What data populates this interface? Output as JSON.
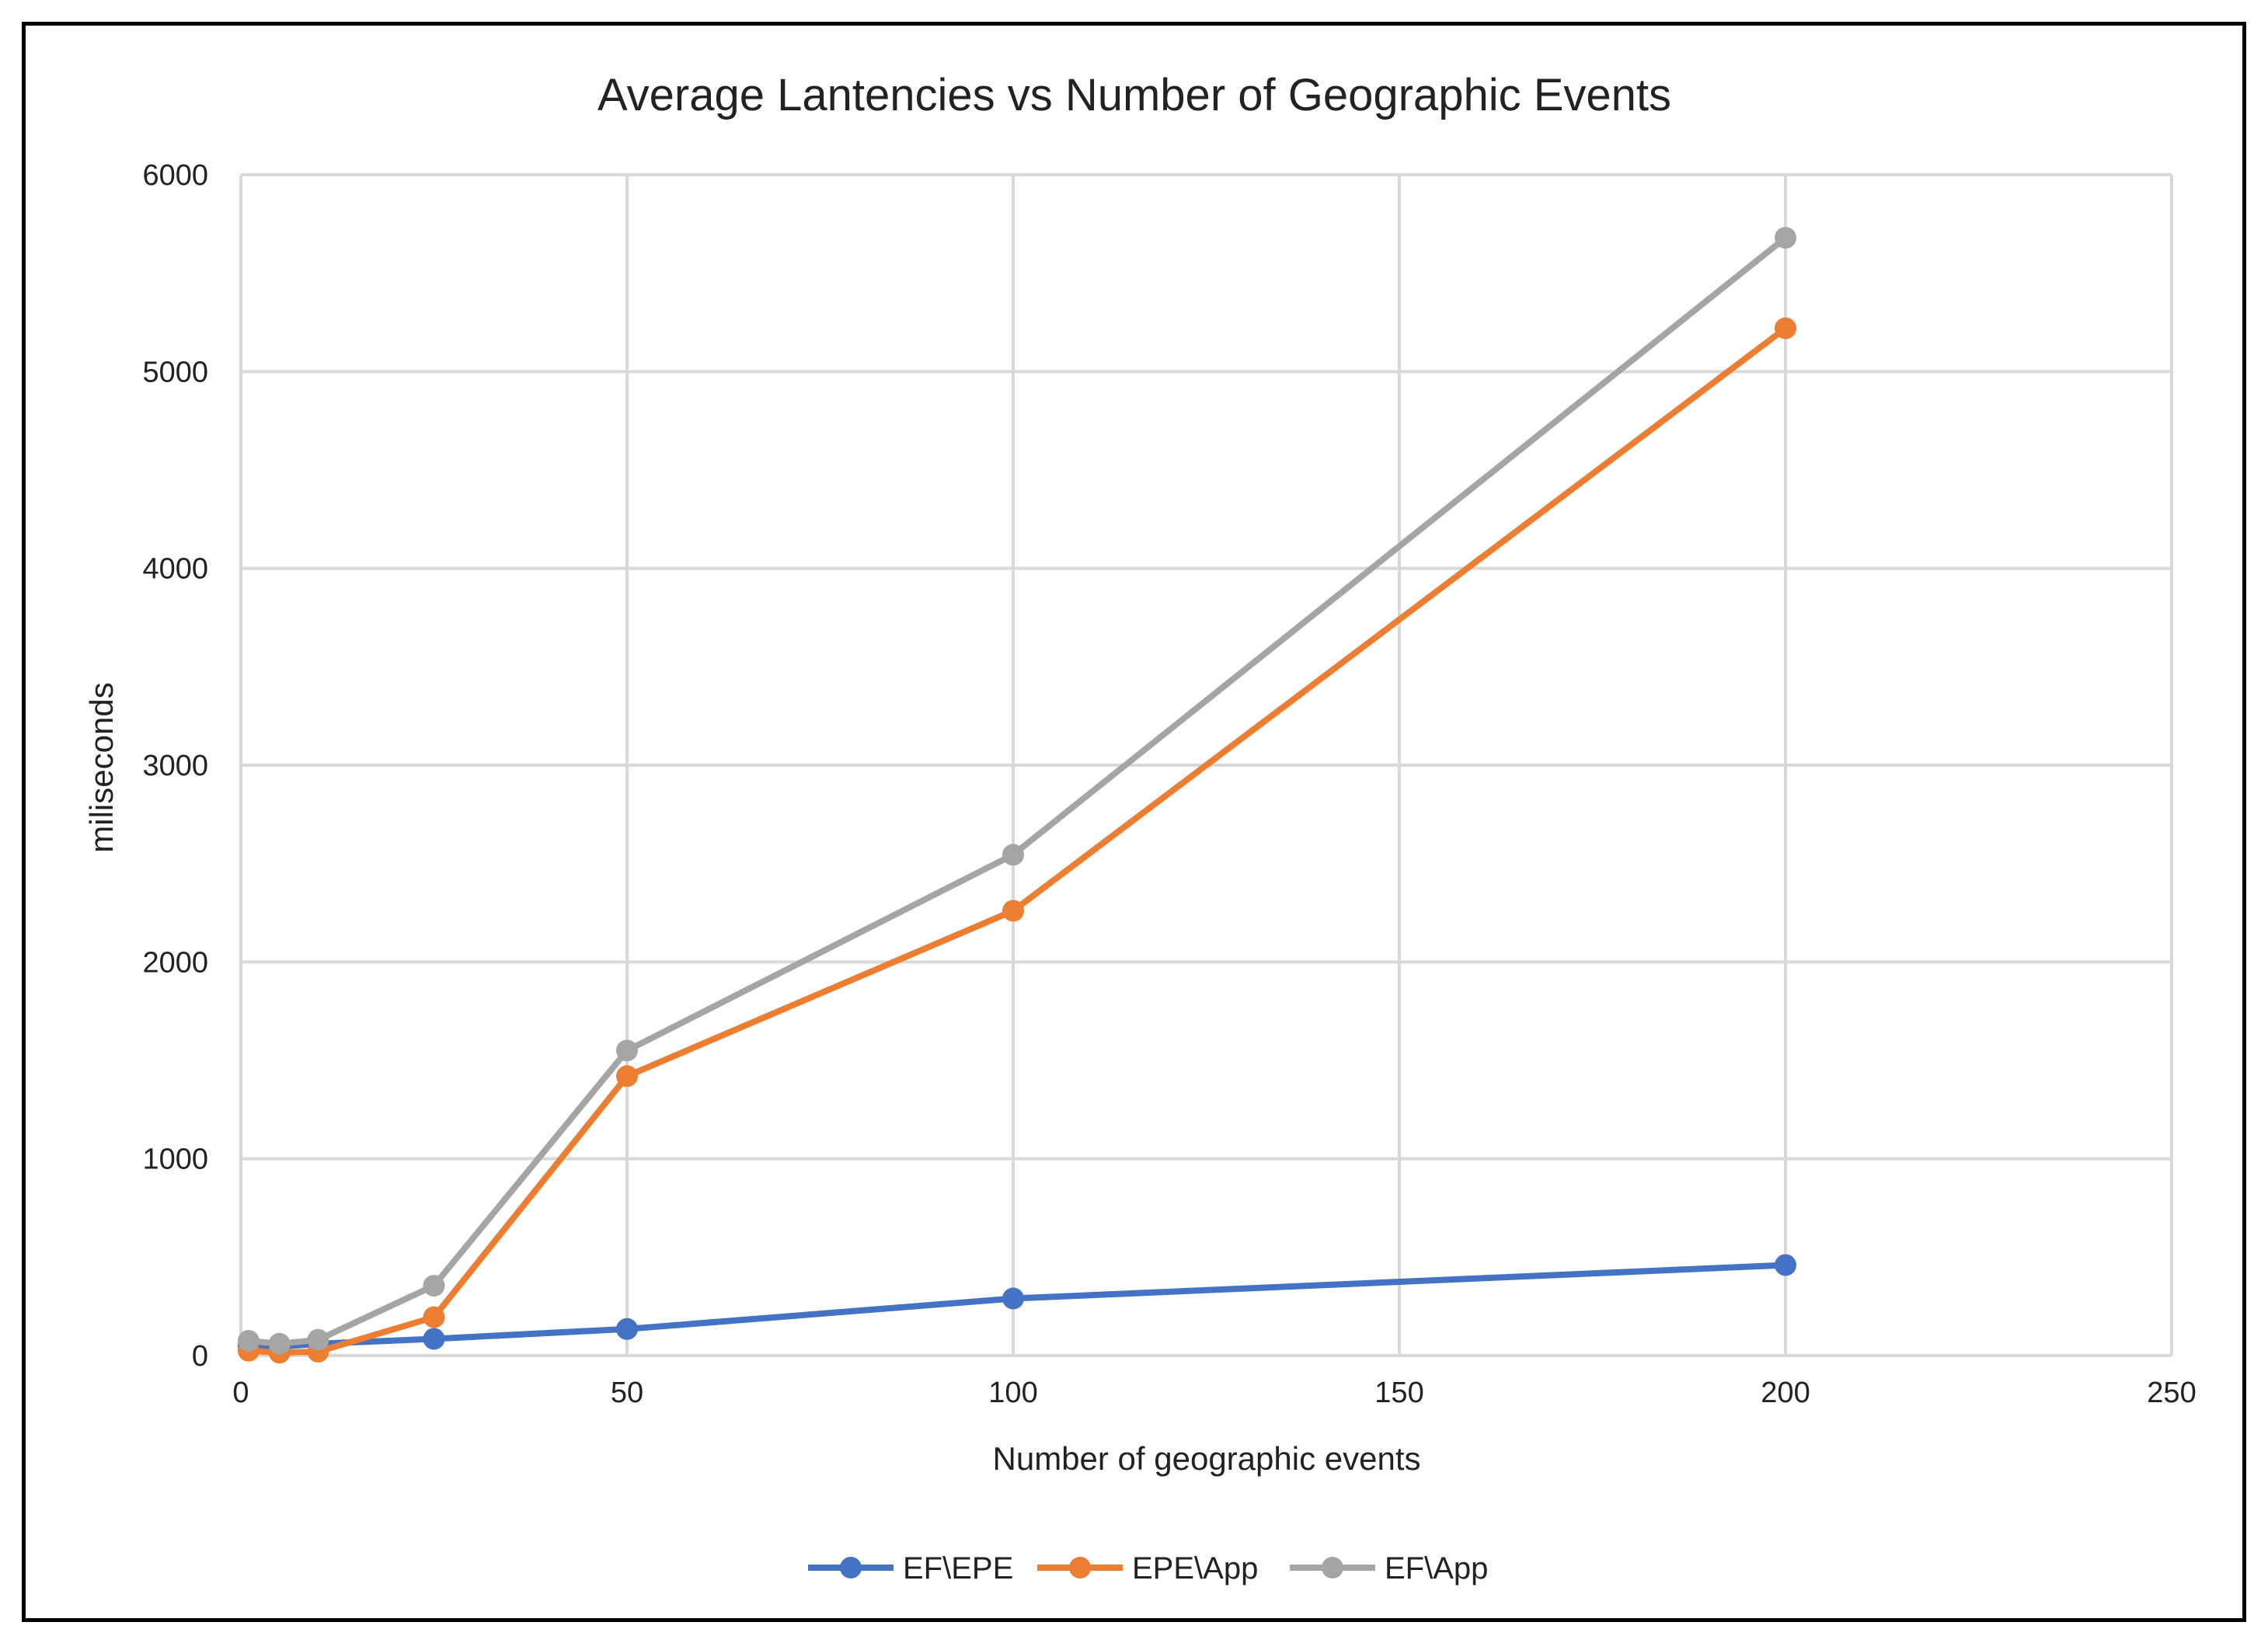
{
  "chart_data": {
    "type": "line",
    "title": "Average Lantencies vs Number of Geographic Events",
    "xlabel": "Number of geographic events",
    "ylabel": "miliseconds",
    "xlim": [
      0,
      250
    ],
    "ylim": [
      0,
      6000
    ],
    "xticks": [
      0,
      50,
      100,
      150,
      200,
      250
    ],
    "yticks": [
      0,
      1000,
      2000,
      3000,
      4000,
      5000,
      6000
    ],
    "grid": true,
    "legend_position": "bottom",
    "series": [
      {
        "name": "EF\\EPE",
        "color": "#4472c4",
        "x": [
          1,
          5,
          10,
          25,
          50,
          100,
          200
        ],
        "y": [
          50,
          45,
          60,
          85,
          135,
          290,
          460
        ]
      },
      {
        "name": "EPE\\App",
        "color": "#ed7d31",
        "x": [
          1,
          5,
          10,
          25,
          50,
          100,
          200
        ],
        "y": [
          25,
          15,
          20,
          195,
          1420,
          2260,
          5220
        ]
      },
      {
        "name": "EF\\App",
        "color": "#a5a5a5",
        "x": [
          1,
          5,
          10,
          25,
          50,
          100,
          200
        ],
        "y": [
          75,
          60,
          80,
          355,
          1550,
          2545,
          5680
        ]
      }
    ]
  }
}
